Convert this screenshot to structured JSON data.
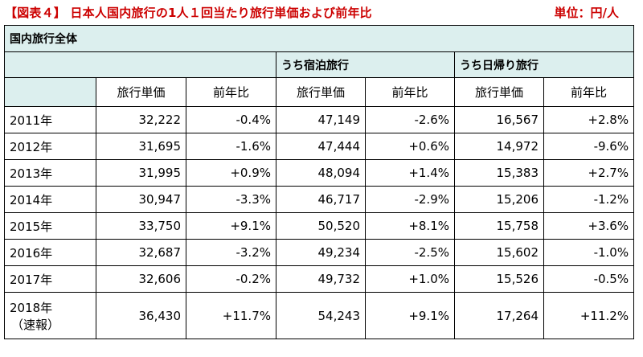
{
  "header": {
    "title": "【図表４】 日本人国内旅行の1人１回当たり旅行単価および前年比",
    "unit": "単位：円/人"
  },
  "table": {
    "group_overall": "国内旅行全体",
    "group_overnight": "うち宿泊旅行",
    "group_daytrip": "うち日帰り旅行",
    "columns": [
      "旅行単価",
      "前年比",
      "旅行単価",
      "前年比",
      "旅行単価",
      "前年比"
    ],
    "rows": [
      {
        "year": "2011年",
        "note": "",
        "cells": [
          "32,222",
          "-0.4%",
          "47,149",
          "-2.6%",
          "16,567",
          "+2.8%"
        ]
      },
      {
        "year": "2012年",
        "note": "",
        "cells": [
          "31,695",
          "-1.6%",
          "47,444",
          "+0.6%",
          "14,972",
          "-9.6%"
        ]
      },
      {
        "year": "2013年",
        "note": "",
        "cells": [
          "31,995",
          "+0.9%",
          "48,094",
          "+1.4%",
          "15,383",
          "+2.7%"
        ]
      },
      {
        "year": "2014年",
        "note": "",
        "cells": [
          "30,947",
          "-3.3%",
          "46,717",
          "-2.9%",
          "15,206",
          "-1.2%"
        ]
      },
      {
        "year": "2015年",
        "note": "",
        "cells": [
          "33,750",
          "+9.1%",
          "50,520",
          "+8.1%",
          "15,758",
          "+3.6%"
        ]
      },
      {
        "year": "2016年",
        "note": "",
        "cells": [
          "32,687",
          "-3.2%",
          "49,234",
          "-2.5%",
          "15,602",
          "-1.0%"
        ]
      },
      {
        "year": "2017年",
        "note": "",
        "cells": [
          "32,606",
          "-0.2%",
          "49,732",
          "+1.0%",
          "15,526",
          "-0.5%"
        ]
      },
      {
        "year": "2018年",
        "note": "（速報）",
        "cells": [
          "36,430",
          "+11.7%",
          "54,243",
          "+9.1%",
          "17,264",
          "+11.2%"
        ]
      }
    ]
  }
}
